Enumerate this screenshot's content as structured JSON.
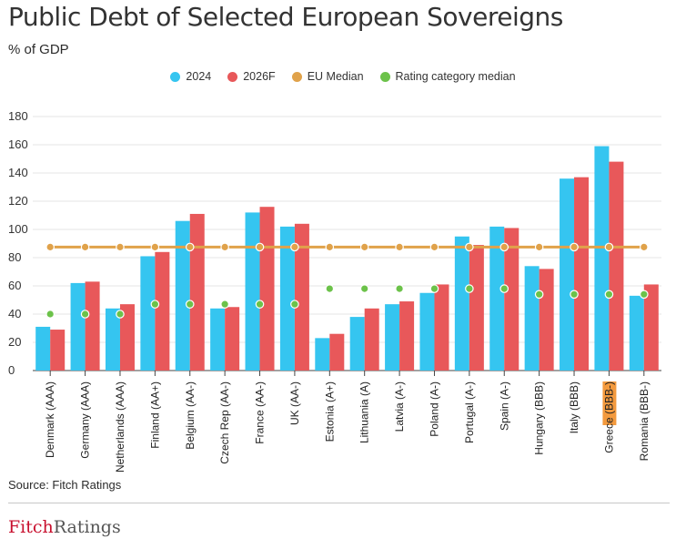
{
  "header": {
    "title": "Public Debt of Selected European Sovereigns",
    "subtitle": "% of GDP"
  },
  "legend": [
    {
      "label": "2024",
      "color": "#35c5f0"
    },
    {
      "label": "2026F",
      "color": "#e8585a"
    },
    {
      "label": "EU Median",
      "color": "#e0a24a"
    },
    {
      "label": "Rating category median",
      "color": "#6cc24a"
    }
  ],
  "chart_data": {
    "type": "bar",
    "title": "Public Debt of Selected European Sovereigns",
    "ylabel": "% of GDP",
    "ylim": [
      0,
      180
    ],
    "yticks": [
      0,
      20,
      40,
      60,
      80,
      100,
      120,
      140,
      160,
      180
    ],
    "categories": [
      "Denmark (AAA)",
      "Germany (AAA)",
      "Netherlands (AAA)",
      "Finland (AA+)",
      "Belgium (AA-)",
      "Czech Rep (AA-)",
      "France (AA-)",
      "UK (AA-)",
      "Estonia (A+)",
      "Lithuania (A)",
      "Latvia (A-)",
      "Poland (A-)",
      "Portugal (A-)",
      "Spain (A-)",
      "Hungary (BBB)",
      "Italy (BBB)",
      "Greece (BBB-)",
      "Romania (BBB-)"
    ],
    "highlight": {
      "label": "Greece",
      "rest": " (BBB-)",
      "index": 16,
      "color": "#f39a3e"
    },
    "series": [
      {
        "name": "2024",
        "color": "#35c5f0",
        "values": [
          31,
          62,
          44,
          81,
          106,
          44,
          112,
          102,
          23,
          38,
          47,
          55,
          95,
          102,
          74,
          136,
          159,
          53
        ]
      },
      {
        "name": "2026F",
        "color": "#e8585a",
        "values": [
          29,
          63,
          47,
          84,
          111,
          45,
          116,
          104,
          26,
          44,
          49,
          61,
          89,
          101,
          72,
          137,
          148,
          61
        ]
      }
    ],
    "eu_median": {
      "name": "EU Median",
      "color": "#e0a24a",
      "value": 87.5
    },
    "rating_category_median": {
      "name": "Rating category median",
      "color": "#6cc24a",
      "values": [
        40,
        40,
        40,
        47,
        47,
        47,
        47,
        47,
        58,
        58,
        58,
        58,
        58,
        58,
        54,
        54,
        54,
        54
      ]
    }
  },
  "footer": {
    "source": "Source: Fitch Ratings",
    "logo_fitch": "Fitch",
    "logo_ratings": "Ratings"
  }
}
